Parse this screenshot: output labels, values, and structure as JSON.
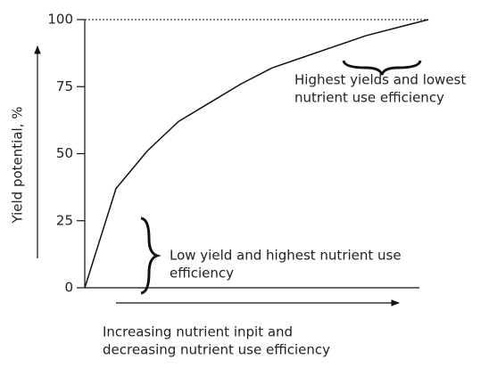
{
  "chart_data": {
    "type": "line",
    "y_axis_label": "Yield potential, %",
    "x_axis_label": [
      "Increasing nutrient inpit and",
      "decreasing nutrient use efficiency"
    ],
    "annotations": [
      {
        "lines": [
          "Highest yields and lowest",
          "nutrient use efficiency"
        ]
      },
      {
        "lines": [
          "Low yield and highest nutrient use",
          "efficiency"
        ]
      }
    ],
    "categories": [
      null,
      null,
      null,
      null,
      null,
      null,
      null,
      null,
      null,
      null,
      null,
      null
    ],
    "series": [
      {
        "color": "#111111",
        "values": [
          0,
          37,
          51,
          62,
          69,
          76,
          82,
          86,
          90,
          94,
          97,
          100
        ]
      }
    ],
    "ylim": [
      0,
      100
    ],
    "yticks": [
      0,
      25,
      50,
      75,
      100
    ],
    "target_line": 100
  }
}
